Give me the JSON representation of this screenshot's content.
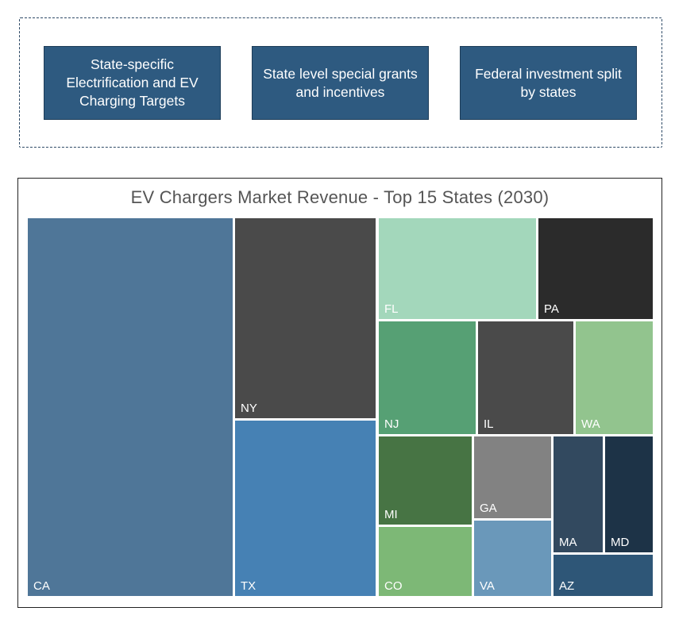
{
  "drivers": [
    {
      "label": "State-specific Electrification and EV Charging Targets"
    },
    {
      "label": "State level special grants and incentives"
    },
    {
      "label": "Federal investment split by states"
    }
  ],
  "chart_data": {
    "type": "treemap",
    "title": "EV Chargers Market Revenue - Top 15 States (2030)",
    "categories": [
      "CA",
      "NY",
      "TX",
      "FL",
      "PA",
      "NJ",
      "IL",
      "WA",
      "MI",
      "CO",
      "GA",
      "VA",
      "MA",
      "MD",
      "AZ"
    ],
    "values": [
      26.0,
      9.6,
      9.7,
      8.8,
      5.1,
      4.6,
      4.6,
      3.6,
      3.8,
      3.0,
      2.2,
      2.6,
      2.0,
      1.9,
      1.2
    ],
    "colors": [
      "#4f7698",
      "#4a4a4a",
      "#4681b4",
      "#a3d7bb",
      "#2b2b2b",
      "#56a074",
      "#4a4a4a",
      "#92c48e",
      "#477444",
      "#7db876",
      "#828282",
      "#6a98ba",
      "#32495f",
      "#1d3347",
      "#2e5677"
    ]
  }
}
